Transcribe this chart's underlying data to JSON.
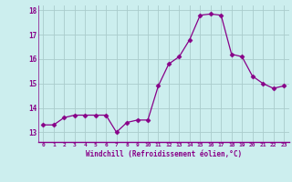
{
  "x": [
    0,
    1,
    2,
    3,
    4,
    5,
    6,
    7,
    8,
    9,
    10,
    11,
    12,
    13,
    14,
    15,
    16,
    17,
    18,
    19,
    20,
    21,
    22,
    23
  ],
  "y": [
    13.3,
    13.3,
    13.6,
    13.7,
    13.7,
    13.7,
    13.7,
    13.0,
    13.4,
    13.5,
    13.5,
    14.9,
    15.8,
    16.1,
    16.8,
    17.8,
    17.85,
    17.8,
    16.2,
    16.1,
    15.3,
    15.0,
    14.8,
    14.9
  ],
  "line_color": "#880088",
  "marker": "D",
  "marker_size": 2.5,
  "bg_color": "#cceeee",
  "grid_color": "#aacccc",
  "xlabel": "Windchill (Refroidissement éolien,°C)",
  "xlabel_color": "#880088",
  "tick_color": "#880088",
  "ylim": [
    12.6,
    18.2
  ],
  "xlim": [
    -0.5,
    23.5
  ],
  "yticks": [
    13,
    14,
    15,
    16,
    17,
    18
  ],
  "xticks": [
    0,
    1,
    2,
    3,
    4,
    5,
    6,
    7,
    8,
    9,
    10,
    11,
    12,
    13,
    14,
    15,
    16,
    17,
    18,
    19,
    20,
    21,
    22,
    23
  ],
  "spine_color": "#880088"
}
